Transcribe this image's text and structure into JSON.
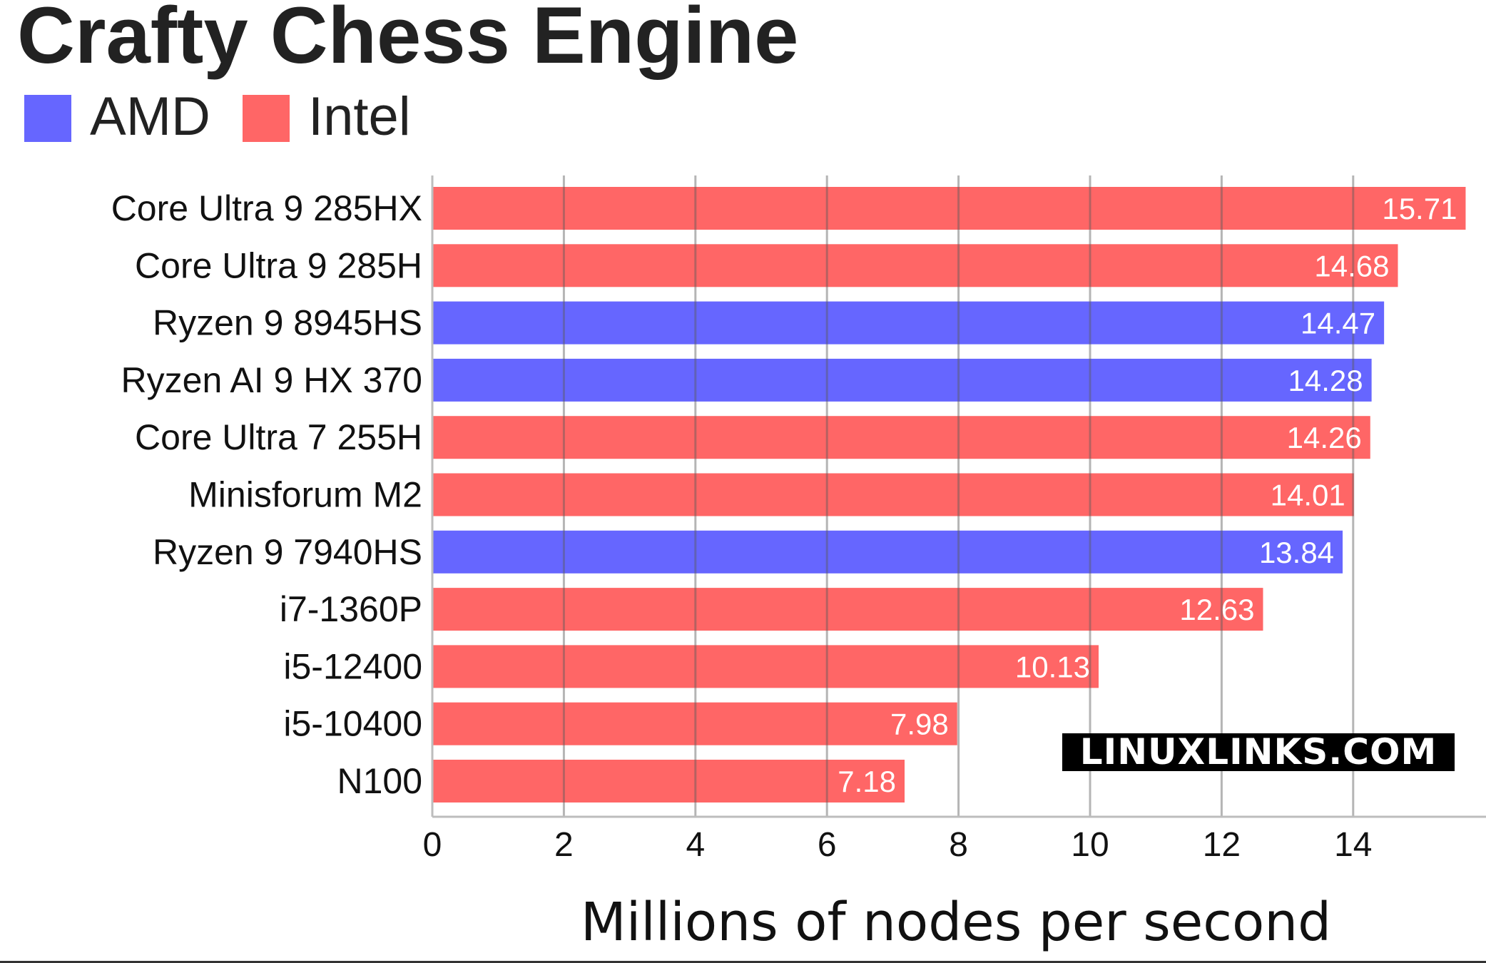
{
  "chart_data": {
    "type": "bar",
    "orientation": "horizontal",
    "title": "Crafty Chess Engine",
    "xlabel": "Millions of nodes per second",
    "ylabel": "",
    "xlim": [
      0,
      15.8
    ],
    "xticks": [
      0,
      2,
      4,
      6,
      8,
      10,
      12,
      14
    ],
    "grid": true,
    "legend_position": "top-left",
    "legend": [
      {
        "name": "AMD",
        "color": "#6666ff"
      },
      {
        "name": "Intel",
        "color": "#ff6666"
      }
    ],
    "categories": [
      "Core Ultra 9 285HX",
      "Core Ultra 9 285H",
      "Ryzen 9 8945HS",
      "Ryzen AI 9 HX 370",
      "Core Ultra 7 255H",
      "Minisforum M2",
      "Ryzen 9 7940HS",
      "i7-1360P",
      "i5-12400",
      "i5-10400",
      "N100"
    ],
    "values": [
      15.71,
      14.68,
      14.47,
      14.28,
      14.26,
      14.01,
      13.84,
      12.63,
      10.13,
      7.98,
      7.18
    ],
    "value_labels": [
      "15.71",
      "14.68",
      "14.47",
      "14.28",
      "14.26",
      "14.01",
      "13.84",
      "12.63",
      "10.13",
      "7.98",
      "7.18"
    ],
    "groups": [
      "Intel",
      "Intel",
      "AMD",
      "AMD",
      "Intel",
      "Intel",
      "AMD",
      "Intel",
      "Intel",
      "Intel",
      "Intel"
    ]
  },
  "watermark": "LINUXLINKS.COM"
}
